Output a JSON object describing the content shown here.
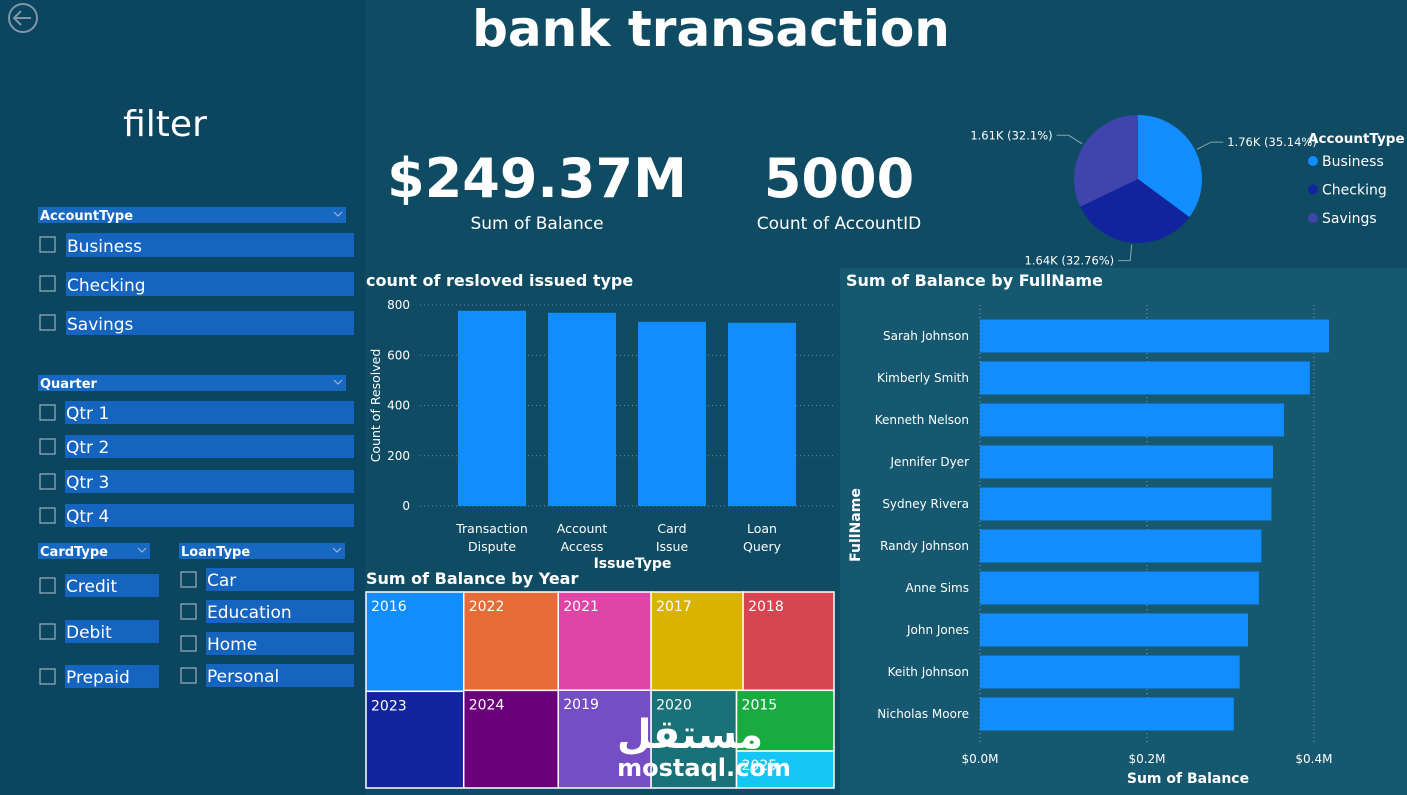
{
  "title": "bank transaction",
  "filter_title": "filter",
  "slicers": [
    {
      "title": "AccountType",
      "options": [
        "Business",
        "Checking",
        "Savings"
      ]
    },
    {
      "title": "Quarter",
      "options": [
        "Qtr 1",
        "Qtr 2",
        "Qtr 3",
        "Qtr 4"
      ]
    },
    {
      "title": "CardType",
      "options": [
        "Credit",
        "Debit",
        "Prepaid"
      ]
    },
    {
      "title": "LoanType",
      "options": [
        "Car",
        "Education",
        "Home",
        "Personal"
      ]
    }
  ],
  "kpis": [
    {
      "value": "$249.37M",
      "label": "Sum of Balance"
    },
    {
      "value": "5000",
      "label": "Count of AccountID"
    }
  ],
  "watermark": {
    "logo": "مستقل",
    "site": "mostaql.com"
  },
  "chart_data": [
    {
      "type": "pie",
      "legend_title": "AccountType",
      "categories": [
        "Business",
        "Checking",
        "Savings"
      ],
      "values": [
        1757,
        1638,
        1605
      ],
      "value_labels": [
        "1.76K (35.14%)",
        "1.64K (32.76%)",
        "1.61K (32.1%)"
      ],
      "colors": [
        "#118dff",
        "#12239e",
        "#3f45ad"
      ]
    },
    {
      "type": "bar",
      "title": "count of resloved issued type",
      "x_label": "IssueType",
      "y_label": "Count of Resolved",
      "categories": [
        "Transaction Dispute",
        "Account Access",
        "Card Issue",
        "Loan Query"
      ],
      "values": [
        777,
        769,
        733,
        729
      ],
      "color": "#118dff",
      "ylim": [
        0,
        800
      ],
      "yticks": [
        0,
        200,
        400,
        600,
        800
      ],
      "grid": true
    },
    {
      "type": "treemap",
      "title": "Sum of Balance by Year",
      "categories": [
        "2016",
        "2023",
        "2022",
        "2024",
        "2021",
        "2019",
        "2017",
        "2018",
        "2020",
        "2015",
        "2025"
      ],
      "values": [
        26.4,
        25.7,
        25.3,
        25.1,
        24.8,
        24.7,
        24.6,
        24.3,
        22.7,
        16.1,
        9.8
      ],
      "colors": [
        "#118dff",
        "#12239e",
        "#e66c37",
        "#6b007b",
        "#e044a7",
        "#744ec2",
        "#d9b300",
        "#d64550",
        "#197278",
        "#1aab40",
        "#15c6f4"
      ]
    },
    {
      "type": "hbar",
      "title": "Sum of Balance by FullName",
      "x_label": "Sum of Balance",
      "y_label": "FullName",
      "categories": [
        "Sarah Johnson",
        "Kimberly Smith",
        "Kenneth Nelson",
        "Jennifer Dyer",
        "Sydney Rivera",
        "Randy Johnson",
        "Anne Sims",
        "John Jones",
        "Keith Johnson",
        "Nicholas Moore"
      ],
      "values": [
        418000,
        395000,
        364000,
        351000,
        349000,
        337000,
        334000,
        321000,
        311000,
        304000
      ],
      "color": "#118dff",
      "xlim": [
        0,
        430000
      ],
      "xticks": [
        {
          "value": 0,
          "label": "$0.0M"
        },
        {
          "value": 200000,
          "label": "$0.2M"
        },
        {
          "value": 400000,
          "label": "$0.4M"
        }
      ],
      "grid": true
    }
  ]
}
